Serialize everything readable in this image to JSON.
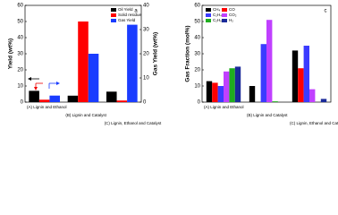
{
  "chart_data": [
    {
      "type": "bar",
      "label": "a",
      "categories": [
        "(A) Lignin and Ethanol",
        "(B) Lignin and Catalyst",
        "(C) Lignin, Ethanol and Catalyst"
      ],
      "ylabel": "Yield (wt%)",
      "y2label": "Gas Yield (wt%)",
      "ylim": [
        0,
        60
      ],
      "yticks": [
        0,
        10,
        20,
        30,
        40,
        50,
        60
      ],
      "y2lim": [
        0,
        40
      ],
      "y2ticks": [
        0,
        10,
        20,
        30,
        40
      ],
      "legend": "upper right",
      "series": [
        {
          "name": "Oil Yield",
          "color": "#000000",
          "values": [
            7,
            4,
            6.5
          ]
        },
        {
          "name": "Solid residue",
          "color": "#ff0000",
          "values": [
            1.5,
            50,
            1
          ]
        },
        {
          "name": "Gas Yield",
          "color": "#1a3cff",
          "axis": "y2",
          "values": [
            2.7,
            20,
            32
          ]
        }
      ]
    },
    {
      "type": "bar",
      "label": "c",
      "categories": [
        "(A) Lignin and Ethanol",
        "(B) Lignin and Catalyst",
        "(C) Lignin, Ethanol and Catalyst"
      ],
      "ylabel": "Gas Fraction (mol%)",
      "ylim": [
        0,
        60
      ],
      "yticks": [
        0,
        10,
        20,
        30,
        40,
        50,
        60
      ],
      "legend": "upper left",
      "series": [
        {
          "name": "CH₄",
          "color": "#000000",
          "values": [
            13,
            10,
            32
          ]
        },
        {
          "name": "CO",
          "color": "#ff0000",
          "values": [
            12,
            0,
            21
          ]
        },
        {
          "name": "C₂H₄",
          "color": "#3b3bff",
          "values": [
            10,
            36,
            35
          ]
        },
        {
          "name": "CO₂",
          "color": "#c040ff",
          "values": [
            19,
            51,
            8
          ]
        },
        {
          "name": "C₂H₆",
          "color": "#1fae1f",
          "values": [
            21,
            0.5,
            0
          ]
        },
        {
          "name": "H₂",
          "color": "#1a2a9a",
          "values": [
            22,
            0,
            2
          ]
        }
      ]
    }
  ]
}
